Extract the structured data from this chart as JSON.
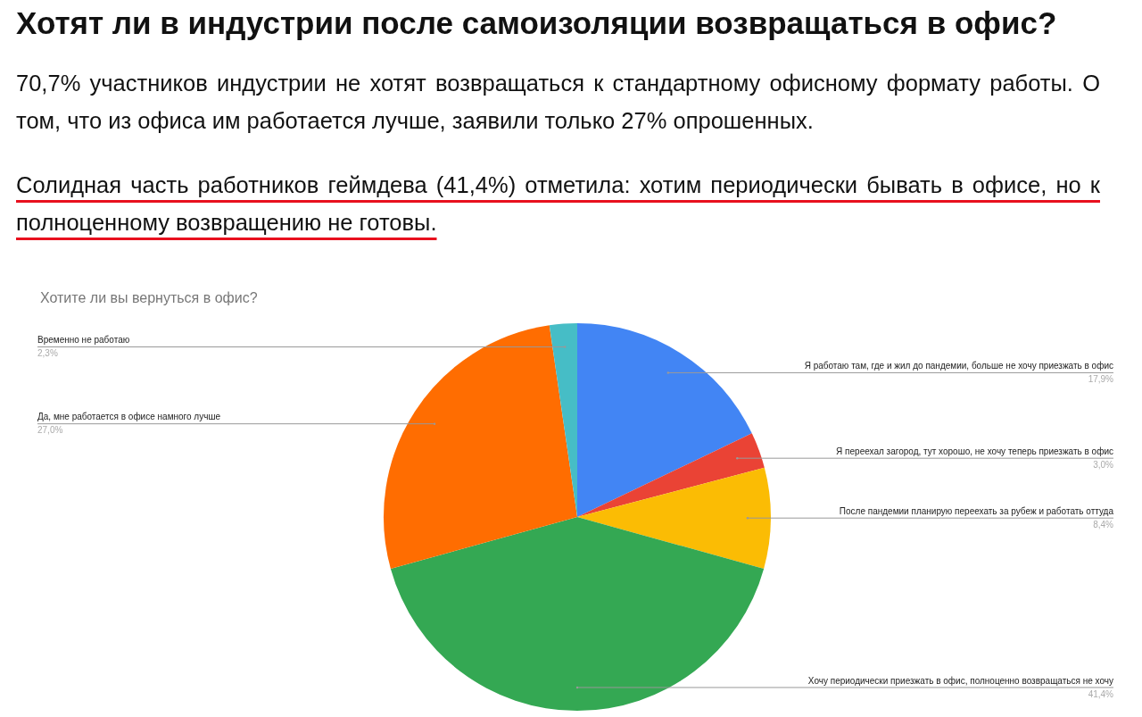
{
  "chart_data": {
    "type": "pie",
    "title": "Хотят ли в индустрии после самоизоляции возвращаться в офис?",
    "subtitle": "Хотите ли вы вернуться в офис?",
    "annotations": [
      "70,7% участников индустрии не хотят возвращаться к стандартному офисному формату работы. О том, что из офиса им работается лучше, заявили только 27% опрошенных.",
      "Солидная часть работников геймдева (41,4%) отметила: хотим периодически бывать в офисе, но к полноценному возвращению не готовы."
    ],
    "categories": [
      "Я работаю там, где и жил до пандемии, больше не хочу приезжать в офис",
      "Я переехал загород, тут хорошо, не хочу теперь приезжать в офис",
      "После пандемии планирую переехать за рубеж и работать оттуда",
      "Хочу периодически приезжать в офис, полноценно возвращаться не хочу",
      "Да, мне работается в офисе намного лучше",
      "Временно не работаю"
    ],
    "values": [
      17.9,
      3.0,
      8.4,
      41.4,
      27.0,
      2.3
    ],
    "value_labels": [
      "17,9%",
      "3,0%",
      "8,4%",
      "41,4%",
      "27,0%",
      "2,3%"
    ],
    "colors": [
      "#4285f4",
      "#ea4335",
      "#fbbc04",
      "#34a853",
      "#ff6d01",
      "#46bdc6"
    ],
    "legend": false
  }
}
